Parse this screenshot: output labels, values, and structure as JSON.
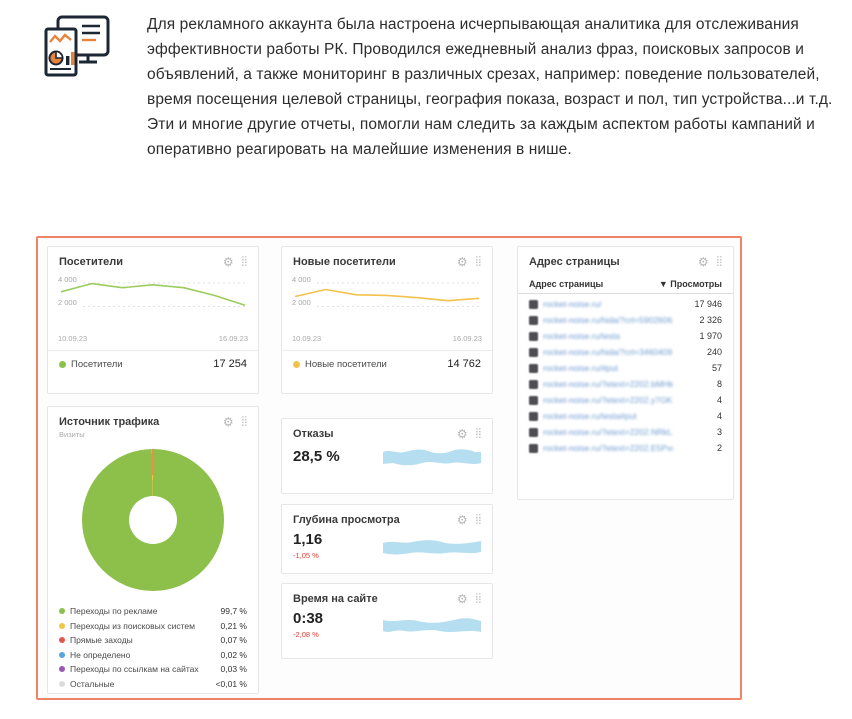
{
  "icons": {
    "gear": "⚙",
    "drag": "⣿"
  },
  "intro": {
    "text": "Для рекламного аккаунта была настроена исчерпывающая аналитика для отслеживания эффективности работы РК. Проводился ежедневный анализ фраз, поисковых запросов и объявлений, а также мониторинг в различных срезах, например: поведение пользователей, время посещения целевой страницы, география показа, возраст и пол, тип устройства...и т.д. Эти и многие другие отчеты, помогли нам следить за каждым аспектом работы кампаний и оперативно реагировать на малейшие изменения в нише."
  },
  "dashboard": {
    "accent_border_color": "#ee8465",
    "widgets": {
      "visitors": {
        "title": "Посетители",
        "y_ticks": [
          "4 000",
          "2 000"
        ],
        "date_start": "10.09.23",
        "date_end": "16.09.23",
        "legend_label": "Посетители",
        "value": "17 254",
        "dot_color": "#8bc34a"
      },
      "new_visitors": {
        "title": "Новые посетители",
        "y_ticks": [
          "4 000",
          "2 000"
        ],
        "date_start": "10.09.23",
        "date_end": "16.09.23",
        "legend_label": "Новые посетители",
        "value": "14 762",
        "dot_color": "#f2c24b"
      },
      "page_address": {
        "title": "Адрес страницы",
        "col_url": "Адрес страницы",
        "col_views": "▼ Просмотры",
        "rows": [
          {
            "url": "rocket-noise.ru/",
            "views": "17 946"
          },
          {
            "url": "rocket-noise.ru/hida/?crt=59026062...",
            "views": "2 326"
          },
          {
            "url": "rocket-noise.ru/testa",
            "views": "1 970"
          },
          {
            "url": "rocket-noise.ru/hida/?crt=34604091...",
            "views": "240"
          },
          {
            "url": "rocket-noise.ru/#put",
            "views": "57"
          },
          {
            "url": "rocket-noise.ru/?etext=2202.bMHk7...",
            "views": "8"
          },
          {
            "url": "rocket-noise.ru/?etext=2202.y7GK28...",
            "views": "4"
          },
          {
            "url": "rocket-noise.ru/testa#put",
            "views": "4"
          },
          {
            "url": "rocket-noise.ru/?etext=2202.NRkLE8...",
            "views": "3"
          },
          {
            "url": "rocket-noise.ru/?etext=2202.E5PxcW...",
            "views": "2"
          }
        ]
      },
      "traffic_source": {
        "title": "Источник трафика",
        "subtitle": "Визиты",
        "legend": [
          {
            "label": "Переходы по рекламе",
            "value": "99,7 %",
            "color": "#8dc04b"
          },
          {
            "label": "Переходы из поисковых систем",
            "value": "0,21 %",
            "color": "#f0c64a"
          },
          {
            "label": "Прямые заходы",
            "value": "0,07 %",
            "color": "#e2574c"
          },
          {
            "label": "Не определено",
            "value": "0,02 %",
            "color": "#58a6dd"
          },
          {
            "label": "Переходы по ссылкам на сайтах",
            "value": "0,03 %",
            "color": "#9b59b6"
          },
          {
            "label": "Остальные",
            "value": "<0,01 %",
            "color": "#dcdcdc"
          }
        ]
      },
      "bounces": {
        "title": "Отказы",
        "value": "28,5 %"
      },
      "depth": {
        "title": "Глубина просмотра",
        "value": "1,16",
        "delta": "-1,05 %"
      },
      "time_on_site": {
        "title": "Время на сайте",
        "value": "0:38",
        "delta": "-2,08 %"
      }
    }
  },
  "chart_data": [
    {
      "id": "visitors",
      "type": "line",
      "title": "Посетители",
      "x": [
        "10.09.23",
        "11.09.23",
        "12.09.23",
        "13.09.23",
        "14.09.23",
        "15.09.23",
        "16.09.23"
      ],
      "values": [
        3250,
        3950,
        3600,
        3850,
        3600,
        2950,
        2100
      ],
      "total_visible": "17 254",
      "color": "#9ccc5e",
      "ylim": [
        0,
        4600
      ],
      "yticks": [
        4000,
        2000
      ],
      "grid": "dashed"
    },
    {
      "id": "new_visitors",
      "type": "line",
      "title": "Новые посетители",
      "x": [
        "10.09.23",
        "11.09.23",
        "12.09.23",
        "13.09.23",
        "14.09.23",
        "15.09.23",
        "16.09.23"
      ],
      "values": [
        2850,
        3450,
        3000,
        2950,
        2750,
        2500,
        2700
      ],
      "total_visible": "14 762",
      "color": "#f2c24b",
      "ylim": [
        0,
        4600
      ],
      "yticks": [
        4000,
        2000
      ],
      "grid": "dashed"
    },
    {
      "id": "traffic_source",
      "type": "donut",
      "title": "Источник трафика",
      "slices": [
        {
          "label": "Переходы по рекламе",
          "pct": 99.7,
          "color": "#8dc04b"
        },
        {
          "label": "Переходы из поисковых систем",
          "pct": 0.21,
          "color": "#f0c64a"
        },
        {
          "label": "Прямые заходы",
          "pct": 0.07,
          "color": "#e2574c"
        },
        {
          "label": "Не определено",
          "pct": 0.02,
          "color": "#58a6dd"
        },
        {
          "label": "Переходы по ссылкам на сайтах",
          "pct": 0.03,
          "color": "#9b59b6"
        },
        {
          "label": "Остальные",
          "pct": 0.01,
          "color": "#dcdcdc"
        }
      ]
    }
  ]
}
